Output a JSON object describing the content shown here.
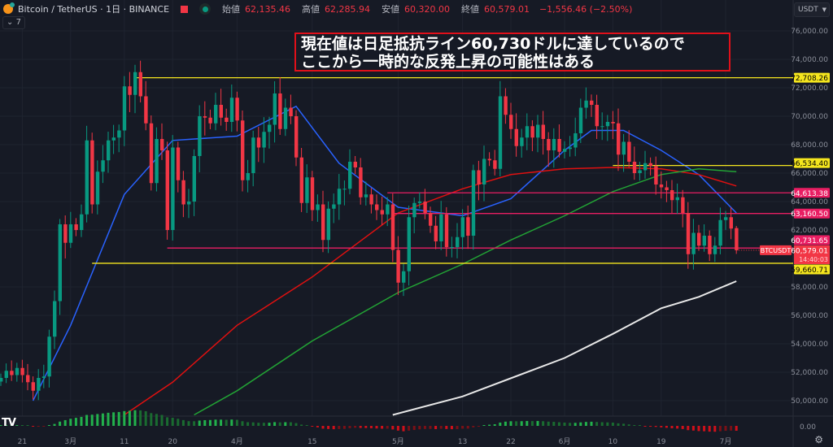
{
  "header": {
    "symbol": "Bitcoin / TetherUS · 1日 · BINANCE",
    "open_label": "始値",
    "open": "62,135.46",
    "high_label": "高値",
    "high": "62,285.94",
    "low_label": "安値",
    "low": "60,320.00",
    "close_label": "終値",
    "close": "60,579.01",
    "change": "−1,556.46 (−2.50%)",
    "indicators_toggle": "7"
  },
  "currency_select": "USDT",
  "annotation": {
    "line1": "現在値は日足抵抗ライン60,730ドルに達しているので",
    "line2": "ここから一時的な反発上昇の可能性はある"
  },
  "logo": "TV",
  "colors": {
    "up": "#089981",
    "down": "#f23645",
    "yellow": "#f5e61e",
    "pink": "#e91e63",
    "ma_blue": "#2962ff",
    "ma_red": "#e01010",
    "ma_green": "#22a335",
    "ma_white": "#e8e8e8",
    "background": "#161a25"
  },
  "chart_data": {
    "type": "candlestick",
    "symbol_label": "BTCUSDT",
    "ylim": [
      49000,
      77000
    ],
    "y_ticks": [
      "76,000.00",
      "74,000.00",
      "72,000.00",
      "70,000.00",
      "68,000.00",
      "66,000.00",
      "64,000.00",
      "62,000.00",
      "58,000.00",
      "56,000.00",
      "54,000.00",
      "52,000.00",
      "50,000.00"
    ],
    "y_tick_values": [
      76000,
      74000,
      72000,
      70000,
      68000,
      66000,
      64000,
      62000,
      58000,
      56000,
      54000,
      52000,
      50000
    ],
    "x_ticks": [
      {
        "label": "21",
        "date": "02-21"
      },
      {
        "label": "3月",
        "date": "03-01"
      },
      {
        "label": "11",
        "date": "03-11"
      },
      {
        "label": "20",
        "date": "03-20"
      },
      {
        "label": "4月",
        "date": "04-01"
      },
      {
        "label": "15",
        "date": "04-15"
      },
      {
        "label": "5月",
        "date": "05-01"
      },
      {
        "label": "13",
        "date": "05-13"
      },
      {
        "label": "22",
        "date": "05-22"
      },
      {
        "label": "6月",
        "date": "06-01"
      },
      {
        "label": "10",
        "date": "06-10"
      },
      {
        "label": "19",
        "date": "06-19"
      },
      {
        "label": "7月",
        "date": "07-01"
      }
    ],
    "dates_start": "02-17",
    "closes": [
      51600,
      52100,
      51800,
      52300,
      51800,
      51300,
      50700,
      51600,
      51700,
      54500,
      57000,
      62400,
      61100,
      62400,
      62000,
      63100,
      68300,
      63800,
      66100,
      66900,
      68300,
      68500,
      69000,
      72100,
      71500,
      73100,
      71400,
      69500,
      65300,
      68400,
      67600,
      62000,
      67800,
      65500,
      63800,
      64000,
      67200,
      70000,
      69900,
      69500,
      70800,
      69900,
      69600,
      71300,
      69700,
      65500,
      66000,
      68500,
      67800,
      68900,
      69400,
      71600,
      69100,
      70600,
      70000,
      67100,
      63900,
      65700,
      63400,
      63800,
      61300,
      63500,
      63800,
      64900,
      64900,
      66800,
      66400,
      64300,
      64500,
      63800,
      63400,
      63100,
      63800,
      60600,
      58300,
      59100,
      62900,
      63900,
      64000,
      63200,
      62300,
      61200,
      63100,
      60800,
      60800,
      61500,
      62900,
      61600,
      66200,
      65200,
      67000,
      66900,
      66300,
      71400,
      70100,
      69100,
      67900,
      68500,
      69300,
      68500,
      69400,
      68400,
      67600,
      68400,
      67500,
      67700,
      67800,
      68800,
      70600,
      71100,
      70800,
      69300,
      69300,
      69600,
      69500,
      67300,
      68200,
      66800,
      66000,
      66200,
      66700,
      66500,
      65200,
      65000,
      64800,
      64100,
      64300,
      63200,
      60300,
      61800,
      60900,
      61600,
      60300,
      60900,
      62700,
      62900,
      62100,
      60579.01
    ],
    "last_candle": {
      "open": 62135.46,
      "high": 62285.94,
      "low": 60320.0,
      "close": 60579.01
    },
    "levels": [
      {
        "value": 72708.26,
        "label": "72,708.26",
        "color": "yellow",
        "from": "03-13"
      },
      {
        "value": 66534.4,
        "label": "66,534.40",
        "color": "yellow",
        "from": "06-10"
      },
      {
        "value": 64613.38,
        "label": "64,613.38",
        "color": "pink",
        "from": "04-29"
      },
      {
        "value": 63160.5,
        "label": "63,160.50",
        "color": "pink",
        "from": "04-30"
      },
      {
        "value": 60731.65,
        "label": "60,731.65",
        "color": "pink",
        "from": "03-19"
      },
      {
        "value": 59660.71,
        "label": "59,660.71",
        "color": "yellow",
        "from": "03-05"
      }
    ],
    "last_price_label": "60,579.01",
    "countdown": "14:40:03",
    "moving_averages": [
      {
        "color": "ma_blue",
        "points": [
          [
            "02-23",
            50000
          ],
          [
            "03-01",
            55300
          ],
          [
            "03-11",
            64500
          ],
          [
            "03-20",
            68300
          ],
          [
            "04-01",
            68600
          ],
          [
            "04-12",
            70700
          ],
          [
            "04-20",
            66700
          ],
          [
            "05-01",
            63600
          ],
          [
            "05-13",
            63000
          ],
          [
            "05-22",
            64200
          ],
          [
            "06-01",
            67600
          ],
          [
            "06-06",
            69000
          ],
          [
            "06-12",
            69000
          ],
          [
            "06-19",
            67600
          ],
          [
            "06-26",
            65900
          ],
          [
            "07-03",
            63200
          ]
        ]
      },
      {
        "color": "ma_red",
        "points": [
          [
            "03-11",
            49000
          ],
          [
            "03-20",
            51300
          ],
          [
            "04-01",
            55300
          ],
          [
            "04-15",
            58700
          ],
          [
            "05-01",
            63200
          ],
          [
            "05-13",
            64900
          ],
          [
            "05-22",
            65900
          ],
          [
            "06-01",
            66300
          ],
          [
            "06-10",
            66400
          ],
          [
            "06-19",
            66300
          ],
          [
            "06-26",
            65900
          ],
          [
            "07-03",
            65100
          ]
        ]
      },
      {
        "color": "ma_green",
        "points": [
          [
            "03-24",
            49000
          ],
          [
            "04-01",
            50700
          ],
          [
            "04-15",
            54200
          ],
          [
            "05-01",
            57600
          ],
          [
            "05-13",
            59600
          ],
          [
            "05-22",
            61300
          ],
          [
            "06-01",
            63000
          ],
          [
            "06-10",
            64700
          ],
          [
            "06-19",
            65900
          ],
          [
            "06-26",
            66300
          ],
          [
            "07-03",
            66100
          ]
        ]
      },
      {
        "color": "ma_white",
        "points": [
          [
            "04-30",
            49000
          ],
          [
            "05-13",
            50300
          ],
          [
            "06-01",
            53000
          ],
          [
            "06-10",
            54700
          ],
          [
            "06-19",
            56500
          ],
          [
            "06-26",
            57300
          ],
          [
            "07-03",
            58400
          ]
        ]
      }
    ],
    "oscillator_zero_label": "0.00"
  }
}
